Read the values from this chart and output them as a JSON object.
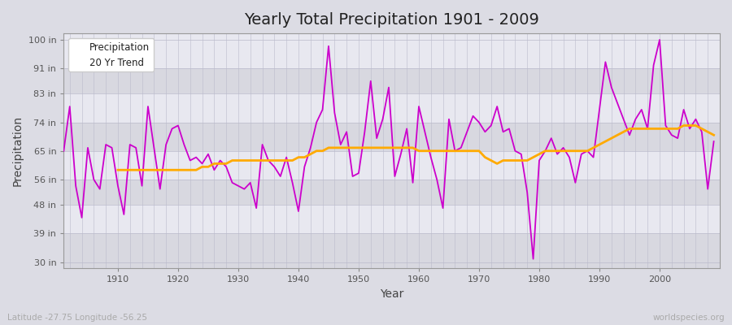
{
  "title": "Yearly Total Precipitation 1901 - 2009",
  "xlabel": "Year",
  "ylabel": "Precipitation",
  "fig_bg_color": "#dcdce4",
  "plot_bg_color": "#e8e8f0",
  "band_colors": [
    "#d8d8e0",
    "#e8e8f0"
  ],
  "line_color": "#cc00cc",
  "trend_color": "#ffaa00",
  "yticks": [
    30,
    39,
    48,
    56,
    65,
    74,
    83,
    91,
    100
  ],
  "ytick_labels": [
    "30 in",
    "39 in",
    "48 in",
    "56 in",
    "65 in",
    "74 in",
    "83 in",
    "91 in",
    "100 in"
  ],
  "ylim": [
    28,
    102
  ],
  "xlim": [
    1901,
    2010
  ],
  "legend_labels": [
    "Precipitation",
    "20 Yr Trend"
  ],
  "bottom_left_text": "Latitude -27.75 Longitude -56.25",
  "bottom_right_text": "worldspecies.org",
  "years": [
    1901,
    1902,
    1903,
    1904,
    1905,
    1906,
    1907,
    1908,
    1909,
    1910,
    1911,
    1912,
    1913,
    1914,
    1915,
    1916,
    1917,
    1918,
    1919,
    1920,
    1921,
    1922,
    1923,
    1924,
    1925,
    1926,
    1927,
    1928,
    1929,
    1930,
    1931,
    1932,
    1933,
    1934,
    1935,
    1936,
    1937,
    1938,
    1939,
    1940,
    1941,
    1942,
    1943,
    1944,
    1945,
    1946,
    1947,
    1948,
    1949,
    1950,
    1951,
    1952,
    1953,
    1954,
    1955,
    1956,
    1957,
    1958,
    1959,
    1960,
    1961,
    1962,
    1963,
    1964,
    1965,
    1966,
    1967,
    1968,
    1969,
    1970,
    1971,
    1972,
    1973,
    1974,
    1975,
    1976,
    1977,
    1978,
    1979,
    1980,
    1981,
    1982,
    1983,
    1984,
    1985,
    1986,
    1987,
    1988,
    1989,
    1990,
    1991,
    1992,
    1993,
    1994,
    1995,
    1996,
    1997,
    1998,
    1999,
    2000,
    2001,
    2002,
    2003,
    2004,
    2005,
    2006,
    2007,
    2008,
    2009
  ],
  "precip": [
    65,
    79,
    54,
    44,
    66,
    56,
    53,
    67,
    66,
    54,
    45,
    67,
    66,
    54,
    79,
    66,
    53,
    67,
    72,
    73,
    67,
    62,
    63,
    61,
    64,
    59,
    62,
    60,
    55,
    54,
    53,
    55,
    47,
    67,
    62,
    60,
    57,
    63,
    55,
    46,
    60,
    66,
    74,
    78,
    98,
    77,
    67,
    71,
    57,
    58,
    71,
    87,
    69,
    75,
    85,
    57,
    64,
    72,
    55,
    79,
    71,
    63,
    56,
    47,
    75,
    65,
    66,
    71,
    76,
    74,
    71,
    73,
    79,
    71,
    72,
    65,
    64,
    52,
    31,
    62,
    65,
    69,
    64,
    66,
    63,
    55,
    64,
    65,
    63,
    78,
    93,
    85,
    80,
    75,
    70,
    75,
    78,
    72,
    92,
    100,
    73,
    70,
    69,
    78,
    72,
    75,
    71,
    53,
    68
  ],
  "trend_years": [
    1910,
    1911,
    1912,
    1913,
    1914,
    1915,
    1916,
    1917,
    1918,
    1919,
    1920,
    1921,
    1922,
    1923,
    1924,
    1925,
    1926,
    1927,
    1928,
    1929,
    1930,
    1931,
    1932,
    1933,
    1934,
    1935,
    1936,
    1937,
    1938,
    1939,
    1940,
    1941,
    1942,
    1943,
    1944,
    1945,
    1946,
    1947,
    1948,
    1949,
    1950,
    1951,
    1952,
    1953,
    1954,
    1955,
    1956,
    1957,
    1958,
    1959,
    1960,
    1961,
    1962,
    1963,
    1964,
    1965,
    1966,
    1967,
    1968,
    1969,
    1970,
    1971,
    1972,
    1973,
    1974,
    1975,
    1976,
    1977,
    1978,
    1979,
    1980,
    1981,
    1982,
    1983,
    1984,
    1985,
    1986,
    1987,
    1988,
    1989,
    1990,
    1991,
    1992,
    1993,
    1994,
    1995,
    1996,
    1997,
    1998,
    1999,
    2000,
    2001,
    2002,
    2003,
    2004,
    2005,
    2006,
    2007,
    2008,
    2009
  ],
  "trend": [
    59,
    59,
    59,
    59,
    59,
    59,
    59,
    59,
    59,
    59,
    59,
    59,
    59,
    59,
    60,
    60,
    61,
    61,
    61,
    62,
    62,
    62,
    62,
    62,
    62,
    62,
    62,
    62,
    62,
    62,
    63,
    63,
    64,
    65,
    65,
    66,
    66,
    66,
    66,
    66,
    66,
    66,
    66,
    66,
    66,
    66,
    66,
    66,
    66,
    66,
    65,
    65,
    65,
    65,
    65,
    65,
    65,
    65,
    65,
    65,
    65,
    63,
    62,
    61,
    62,
    62,
    62,
    62,
    62,
    63,
    64,
    65,
    65,
    65,
    65,
    65,
    65,
    65,
    65,
    66,
    67,
    68,
    69,
    70,
    71,
    72,
    72,
    72,
    72,
    72,
    72,
    72,
    72,
    72,
    73,
    73,
    73,
    72,
    71,
    70
  ]
}
